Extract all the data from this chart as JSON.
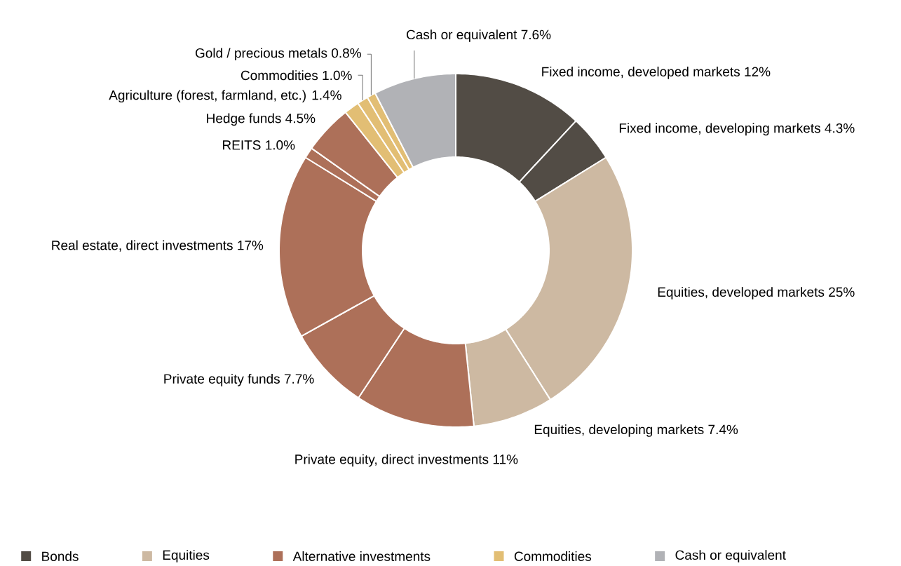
{
  "chart_data": {
    "type": "donut",
    "categories": [
      "Fixed income, developed markets",
      "Fixed income, developing markets",
      "Equities, developed markets",
      "Equities, developing markets",
      "Private equity, direct investments",
      "Private equity funds",
      "Real estate, direct investments",
      "REITS",
      "Hedge funds",
      "Agriculture (forest, farmland, etc.)",
      "Commodities",
      "Gold / precious metals",
      "Cash or equivalent"
    ],
    "values": [
      12,
      4.3,
      25,
      7.4,
      11,
      7.7,
      17,
      1.0,
      4.5,
      1.4,
      1.0,
      0.8,
      7.6
    ],
    "value_labels": [
      "12%",
      "4.3%",
      "25%",
      "7.4%",
      "11%",
      "7.7%",
      "17%",
      "1.0%",
      "4.5%",
      "1.4%",
      "1.0%",
      "0.8%",
      "7.6%"
    ],
    "colors": [
      "#524c45",
      "#524c45",
      "#cdb9a2",
      "#cdb9a2",
      "#ad7059",
      "#ad7059",
      "#ad7059",
      "#ad7059",
      "#ad7059",
      "#e2be74",
      "#e2be74",
      "#e2be74",
      "#b1b2b6"
    ],
    "annotations": [
      "Bonds",
      "Equities",
      "Alternative investments",
      "Commodities",
      "Cash or equivalent"
    ]
  }
}
